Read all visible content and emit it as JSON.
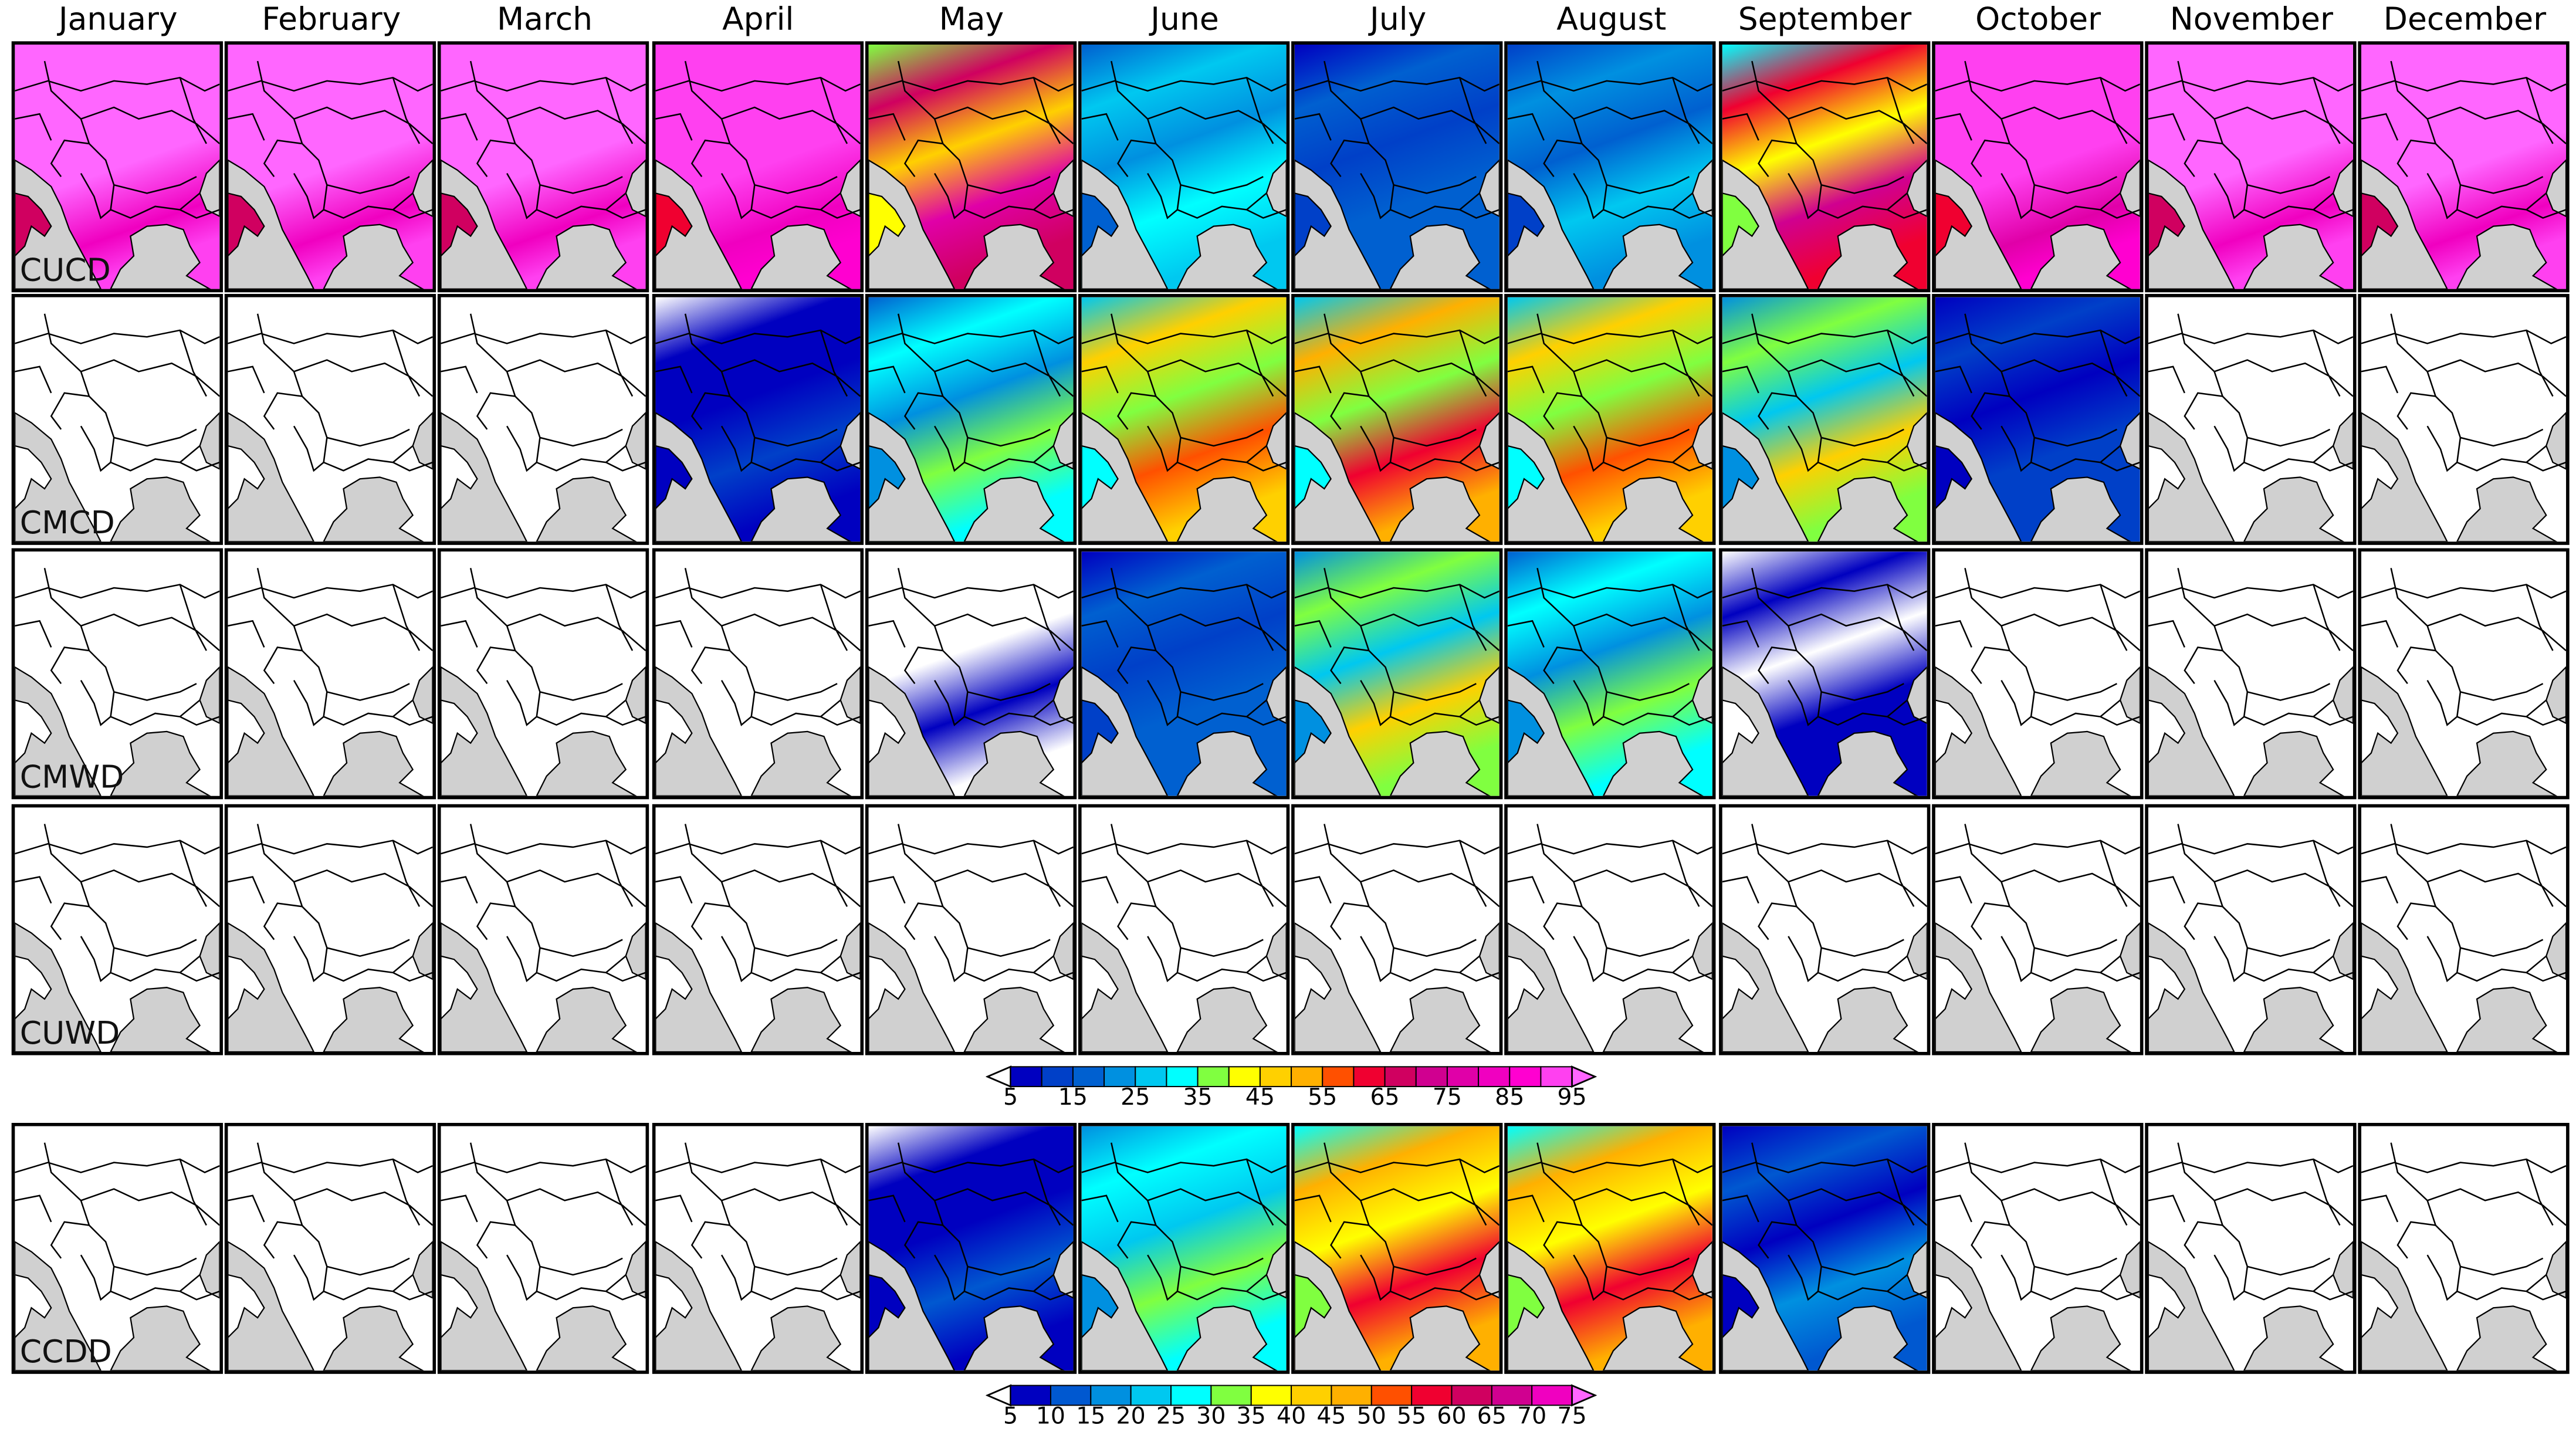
{
  "months": [
    "January",
    "February",
    "March",
    "April",
    "May",
    "June",
    "July",
    "August",
    "September",
    "October",
    "November",
    "December"
  ],
  "rows": [
    {
      "label": "CUCD",
      "scale": 0,
      "values": [
        96,
        96,
        96,
        92,
        60,
        25,
        15,
        20,
        55,
        90,
        96,
        96
      ]
    },
    {
      "label": "CMCD",
      "scale": 0,
      "values": [
        0,
        0,
        0,
        8,
        30,
        45,
        48,
        45,
        35,
        10,
        0,
        0
      ]
    },
    {
      "label": "CMWD",
      "scale": 0,
      "values": [
        0,
        0,
        0,
        0,
        4,
        15,
        35,
        30,
        6,
        0,
        0,
        0
      ]
    },
    {
      "label": "CUWD",
      "scale": 0,
      "values": [
        0,
        0,
        0,
        0,
        0,
        1,
        3,
        3,
        0,
        0,
        0,
        0
      ]
    },
    {
      "label": "CCDD",
      "scale": 1,
      "values": [
        0,
        0,
        0,
        0,
        8,
        25,
        45,
        45,
        12,
        2,
        0,
        0
      ]
    }
  ],
  "colorbars": [
    {
      "bounds": [
        5,
        10,
        15,
        20,
        25,
        30,
        35,
        40,
        45,
        50,
        55,
        60,
        65,
        70,
        75,
        80,
        85,
        90,
        95
      ],
      "tick_labels": [
        "5",
        "15",
        "25",
        "35",
        "45",
        "55",
        "65",
        "75",
        "85",
        "95"
      ],
      "colors": [
        "#0000c0",
        "#0040c8",
        "#0060d0",
        "#0090e0",
        "#00c8f0",
        "#00ffff",
        "#80ff40",
        "#ffff00",
        "#ffd000",
        "#ffb000",
        "#ff5000",
        "#f00030",
        "#d00060",
        "#d00090",
        "#e000a8",
        "#f000c0",
        "#ff00d0",
        "#ff40f0"
      ],
      "under": "#ffffff",
      "over": "#ff66ff"
    },
    {
      "bounds": [
        5,
        10,
        15,
        20,
        25,
        30,
        35,
        40,
        45,
        50,
        55,
        60,
        65,
        70,
        75
      ],
      "tick_labels": [
        "5",
        "10",
        "15",
        "20",
        "25",
        "30",
        "35",
        "40",
        "45",
        "50",
        "55",
        "60",
        "65",
        "70",
        "75"
      ],
      "colors": [
        "#0000c0",
        "#0058d0",
        "#0090e0",
        "#00c8f0",
        "#00ffff",
        "#80ff40",
        "#ffff00",
        "#ffd000",
        "#ffb000",
        "#ff5000",
        "#f00030",
        "#d00060",
        "#d00090",
        "#f000c0"
      ],
      "under": "#ffffff",
      "over": "#ff66ff"
    }
  ],
  "sea_color": "#d0d0d0"
}
